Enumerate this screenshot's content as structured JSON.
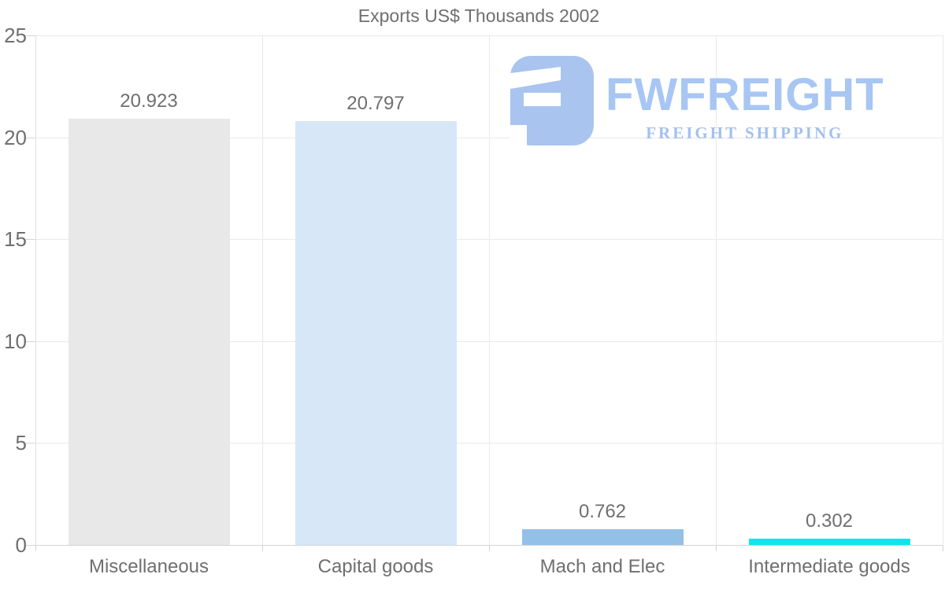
{
  "page": {
    "background": "#ffffff"
  },
  "watermark": {
    "brand": "FWFREIGHT",
    "tagline": "FREIGHT SHIPPING",
    "color": "#a7c6f3",
    "icon": "fwfreight-logo-icon"
  },
  "colors": {
    "text": "#6f6f6f",
    "gridline": "#e9e9e9",
    "axis_line": "#d5d5d5",
    "left_axis_line": "#e2e2e2",
    "tick": "#d5d5d5"
  },
  "chart_data": {
    "type": "bar",
    "title": "Exports US$ Thousands 2002",
    "categories": [
      "Miscellaneous",
      "Capital goods",
      "Mach and Elec",
      "Intermediate goods"
    ],
    "values": [
      20.923,
      20.797,
      0.762,
      0.302
    ],
    "value_labels": [
      "20.923",
      "20.797",
      "0.762",
      "0.302"
    ],
    "bar_colors": [
      "#e8e8e8",
      "#d7e7f8",
      "#93c0e6",
      "#0ae8ee"
    ],
    "xlabel": "",
    "ylabel": "",
    "ylim": [
      0,
      25
    ],
    "yticks": [
      0,
      5,
      10,
      15,
      20,
      25
    ],
    "grid": true,
    "legend_position": "none"
  }
}
